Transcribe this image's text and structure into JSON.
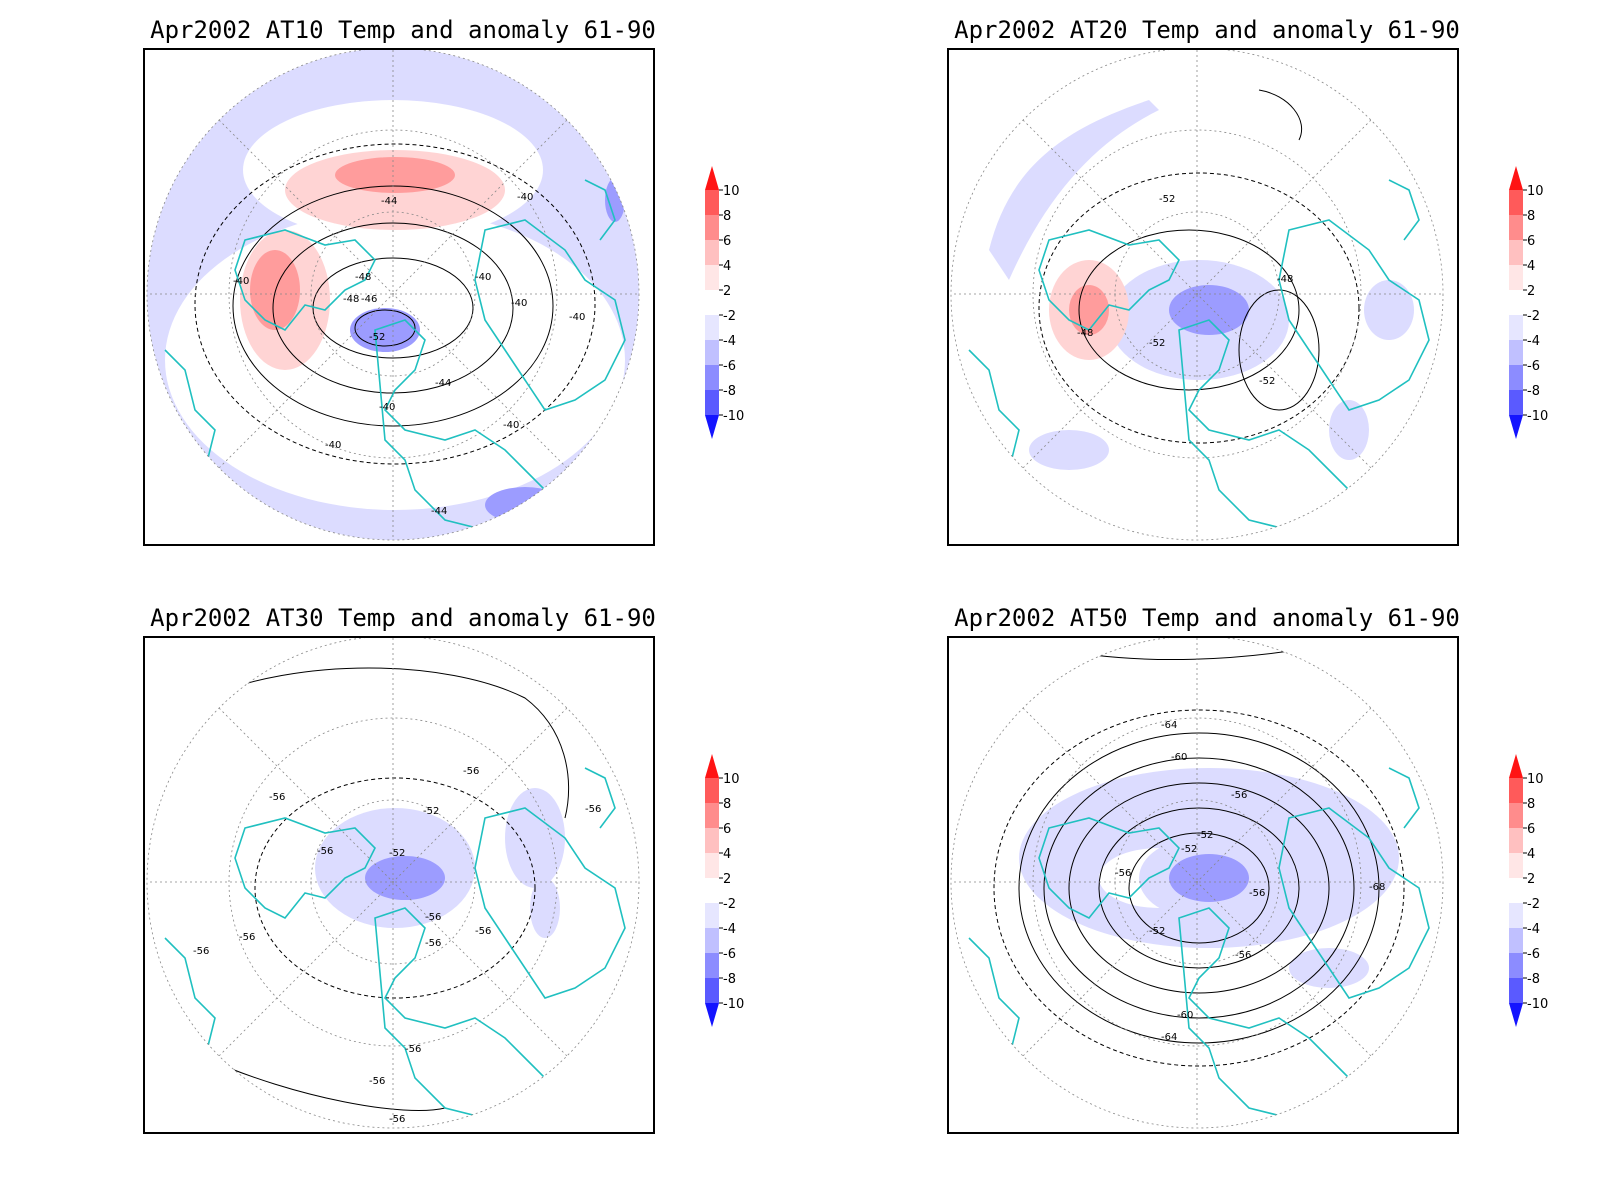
{
  "panels": [
    {
      "title": "Apr2002 AT10 Temp and anomaly 61-90",
      "contour_labels": [
        "-40",
        "-44",
        "-48",
        "-48",
        "-46",
        "-52",
        "-40",
        "-40",
        "-40",
        "-40",
        "-40",
        "-44",
        "-40",
        "-40",
        "-44"
      ]
    },
    {
      "title": "Apr2002 AT20 Temp and anomaly 61-90",
      "contour_labels": [
        "-52",
        "-48",
        "-48",
        "-52",
        "-52"
      ]
    },
    {
      "title": "Apr2002 AT30 Temp and anomaly 61-90",
      "contour_labels": [
        "-56",
        "-56",
        "-56",
        "-52",
        "-52",
        "-56",
        "-56",
        "-56",
        "-56",
        "-56",
        "-56",
        "-56",
        "-56",
        "-56"
      ]
    },
    {
      "title": "Apr2002 AT50 Temp and anomaly 61-90",
      "contour_labels": [
        "-64",
        "-60",
        "-56",
        "-52",
        "-52",
        "-56",
        "-56",
        "-52",
        "-56",
        "-68",
        "-60",
        "-64"
      ]
    }
  ],
  "colorbar": {
    "labels": [
      "10",
      "8",
      "6",
      "4",
      "2",
      "-2",
      "-4",
      "-6",
      "-8",
      "-10"
    ],
    "colors": [
      "#ff1414",
      "#ff5a5a",
      "#ff8c8c",
      "#ffc0c0",
      "#ffe6e6",
      "#ffffff",
      "#e6e6ff",
      "#c0c0ff",
      "#8c8cff",
      "#5a5aff",
      "#1414ff"
    ]
  },
  "colors": {
    "coastline": "#20c0c0",
    "contour": "#000000",
    "anomaly_pos_light": "#ffd4d4",
    "anomaly_pos": "#ff9c9c",
    "anomaly_neg_light": "#dcdcff",
    "anomaly_neg": "#9c9cff"
  }
}
